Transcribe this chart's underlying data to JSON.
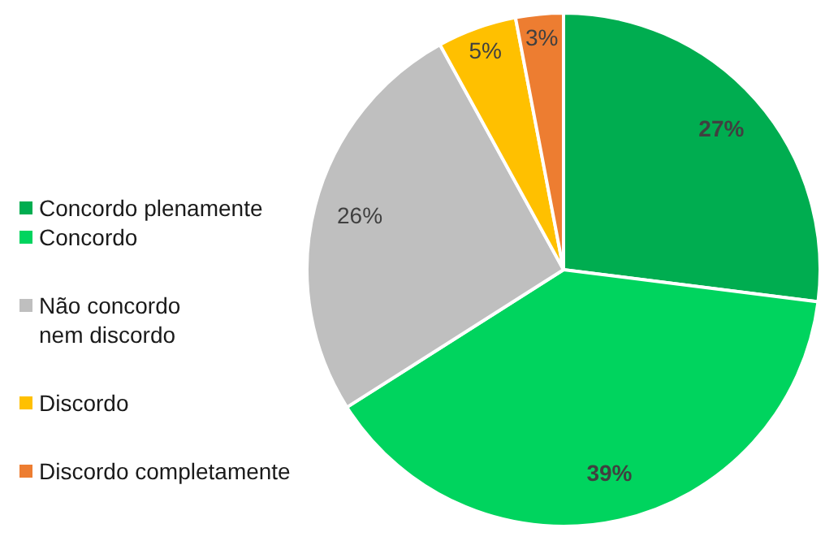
{
  "chart_data": {
    "type": "pie",
    "categories": [
      "Concordo plenamente",
      "Concordo",
      "Não concordo nem discordo",
      "Discordo",
      "Discordo completamente"
    ],
    "values": [
      27,
      39,
      26,
      5,
      3
    ],
    "colors": [
      "#00ad50",
      "#00d45e",
      "#bfbfbf",
      "#ffc000",
      "#ed7d31"
    ],
    "value_labels": [
      "27%",
      "39%",
      "26%",
      "5%",
      "3%"
    ],
    "legend": "left"
  }
}
